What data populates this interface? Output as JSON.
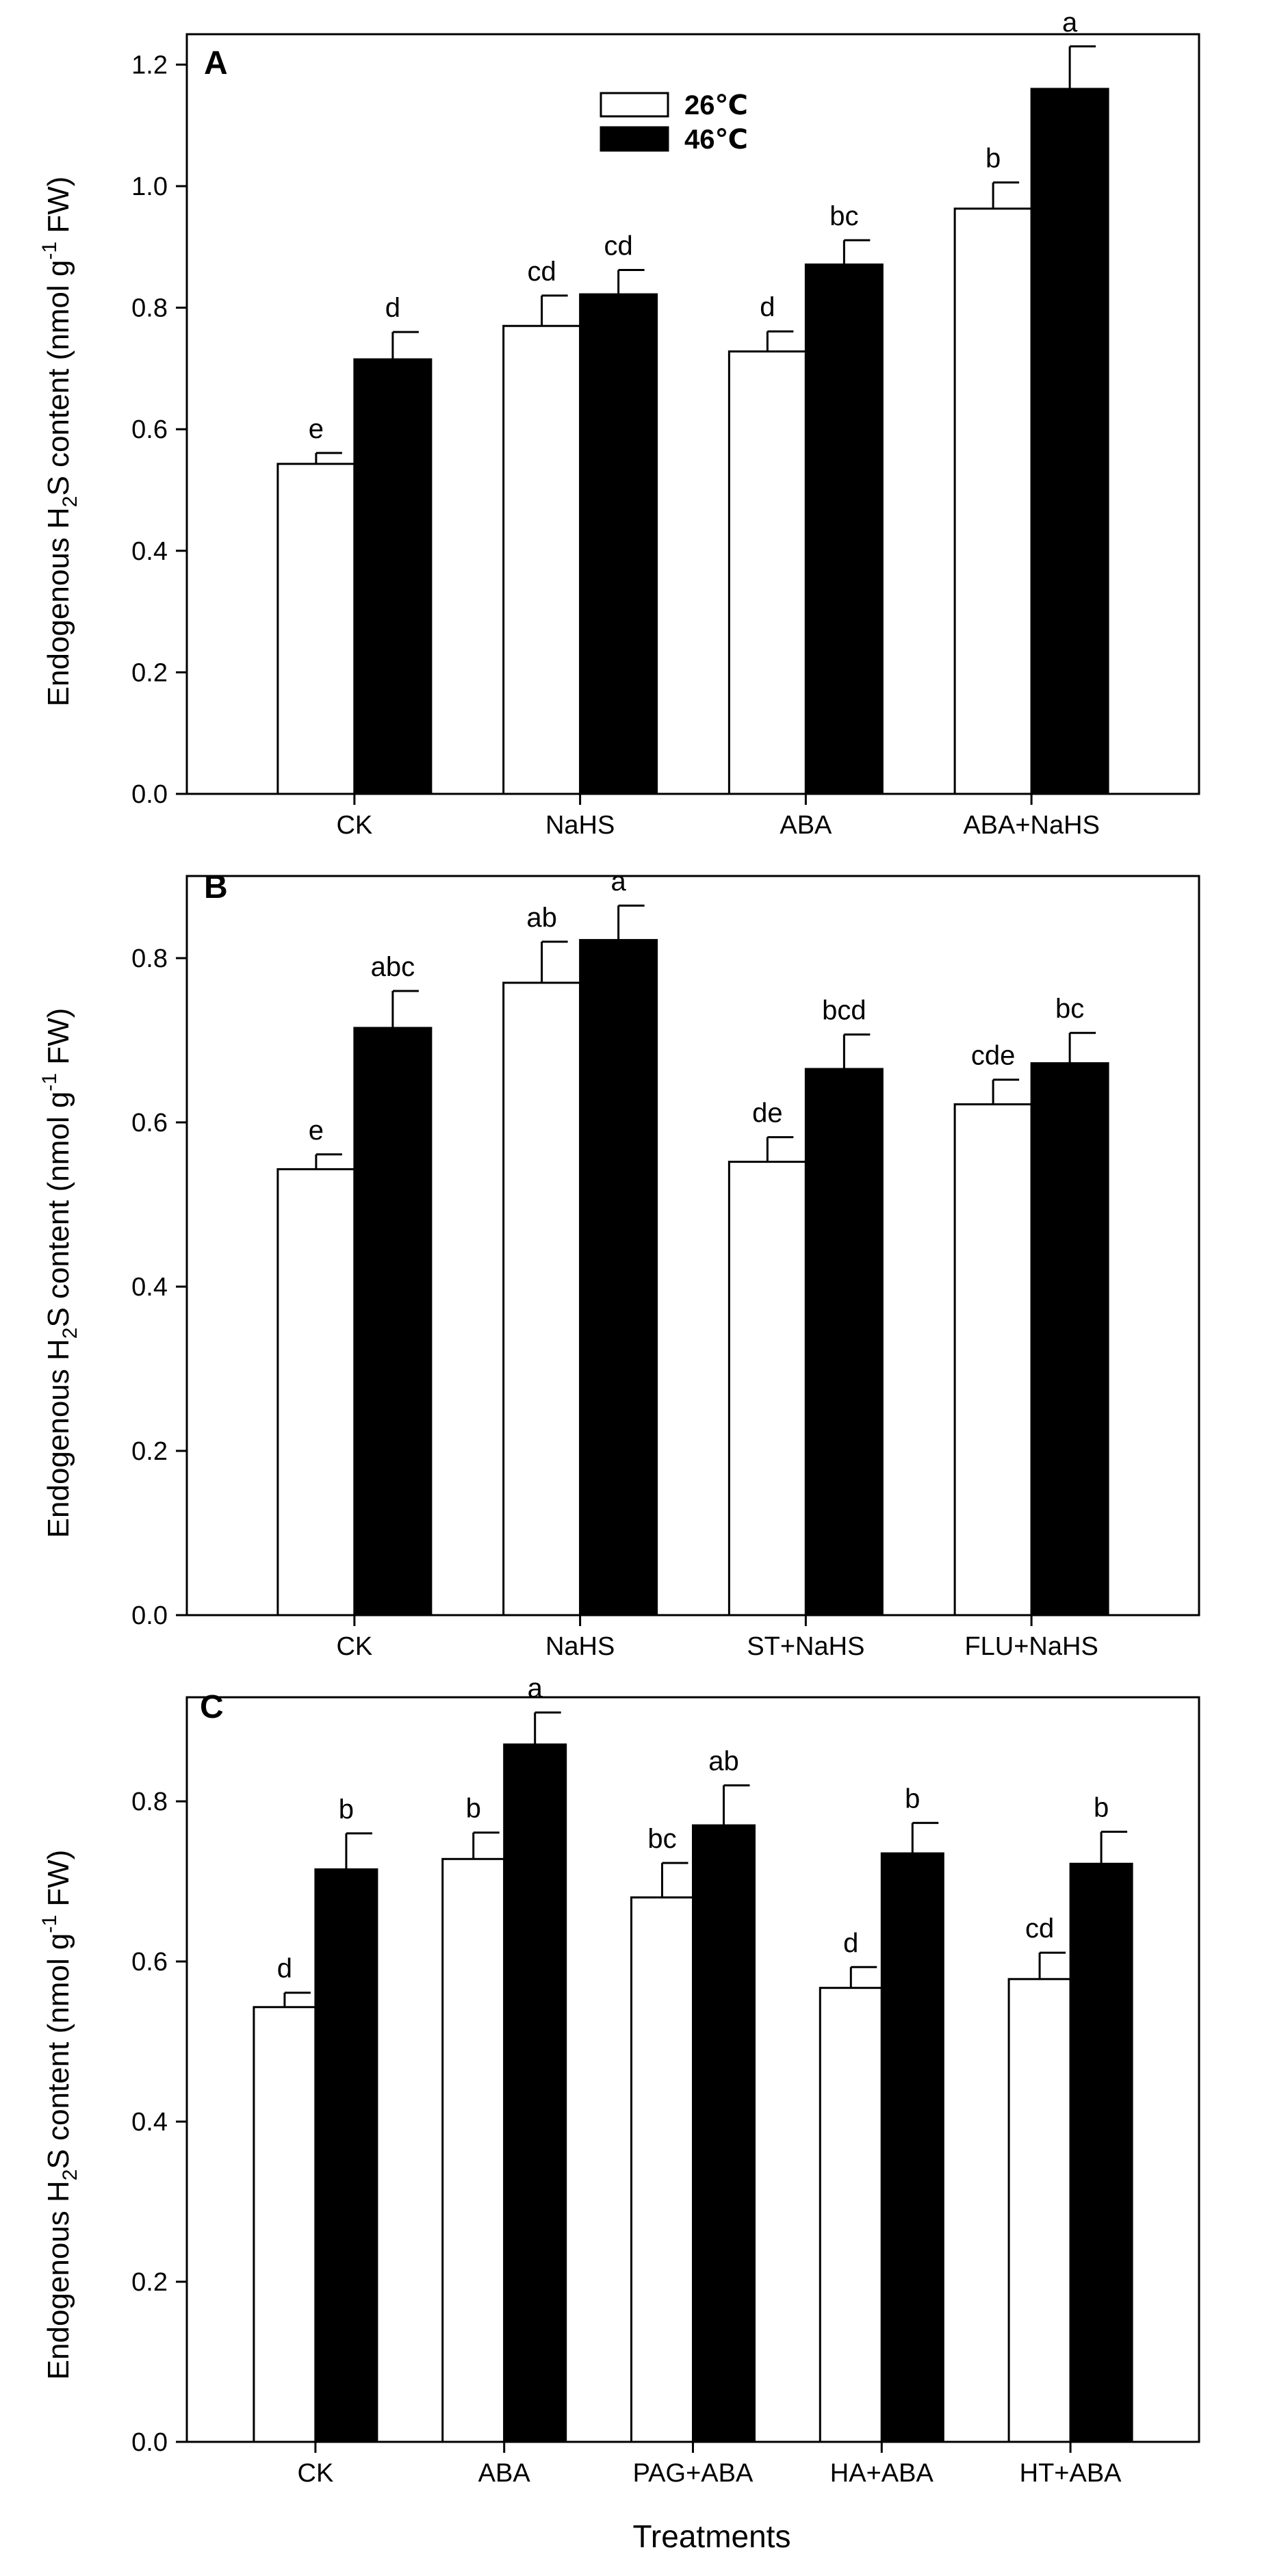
{
  "colors": {
    "temp_26": "#ffffff",
    "temp_46": "#000000",
    "stroke": "#000000"
  },
  "legend": {
    "entries": [
      {
        "label": "26℃",
        "color": "#ffffff"
      },
      {
        "label": "46℃",
        "color": "#000000"
      }
    ],
    "placement": "top-center (panel A)"
  },
  "chart_data": [
    {
      "type": "bar",
      "panel": "A",
      "ylabel": {
        "pre": "Endogenous H",
        "sub": "2",
        "mid": "S content (nmol g",
        "sup": "-1",
        "post": " FW)"
      },
      "xlabel": "",
      "ylim": [
        0,
        1.25
      ],
      "yticks": [
        "0.0",
        "0.2",
        "0.4",
        "0.6",
        "0.8",
        "1.0",
        "1.2"
      ],
      "categories": [
        "CK",
        "NaHS",
        "ABA",
        "ABA+NaHS"
      ],
      "series": [
        {
          "name": "26℃",
          "values": [
            0.543,
            0.77,
            0.728,
            0.963
          ],
          "errors": [
            0.018,
            0.05,
            0.033,
            0.043
          ],
          "letters": [
            "e",
            "cd",
            "d",
            "b"
          ]
        },
        {
          "name": "46℃",
          "values": [
            0.715,
            0.822,
            0.871,
            1.16
          ],
          "errors": [
            0.045,
            0.04,
            0.04,
            0.07
          ],
          "letters": [
            "d",
            "cd",
            "bc",
            "a"
          ]
        }
      ]
    },
    {
      "type": "bar",
      "panel": "B",
      "ylabel": {
        "pre": "Endogenous H",
        "sub": "2",
        "mid": "S content (nmol g",
        "sup": "-1",
        "post": " FW)"
      },
      "xlabel": "",
      "ylim": [
        0,
        0.9
      ],
      "yticks": [
        "0.0",
        "0.2",
        "0.4",
        "0.6",
        "0.8"
      ],
      "categories": [
        "CK",
        "NaHS",
        "ST+NaHS",
        "FLU+NaHS"
      ],
      "series": [
        {
          "name": "26℃",
          "values": [
            0.543,
            0.77,
            0.552,
            0.622
          ],
          "errors": [
            0.018,
            0.05,
            0.03,
            0.03
          ],
          "letters": [
            "e",
            "ab",
            "de",
            "cde"
          ]
        },
        {
          "name": "46℃",
          "values": [
            0.715,
            0.822,
            0.665,
            0.672
          ],
          "errors": [
            0.045,
            0.042,
            0.042,
            0.037
          ],
          "letters": [
            "abc",
            "a",
            "bcd",
            "bc"
          ]
        }
      ]
    },
    {
      "type": "bar",
      "panel": "C",
      "ylabel": {
        "pre": "Endogenous H",
        "sub": "2",
        "mid": "S content (nmol g",
        "sup": "-1",
        "post": " FW)"
      },
      "xlabel": "Treatments",
      "ylim": [
        0,
        0.93
      ],
      "yticks": [
        "0.0",
        "0.2",
        "0.4",
        "0.6",
        "0.8"
      ],
      "categories": [
        "CK",
        "ABA",
        "PAG+ABA",
        "HA+ABA",
        "HT+ABA"
      ],
      "series": [
        {
          "name": "26℃",
          "values": [
            0.543,
            0.728,
            0.68,
            0.567,
            0.578
          ],
          "errors": [
            0.018,
            0.033,
            0.043,
            0.026,
            0.033
          ],
          "letters": [
            "d",
            "b",
            "bc",
            "d",
            "cd"
          ]
        },
        {
          "name": "46℃",
          "values": [
            0.715,
            0.871,
            0.77,
            0.735,
            0.722
          ],
          "errors": [
            0.045,
            0.04,
            0.05,
            0.038,
            0.04
          ],
          "letters": [
            "b",
            "a",
            "ab",
            "b",
            "b"
          ]
        }
      ]
    }
  ]
}
